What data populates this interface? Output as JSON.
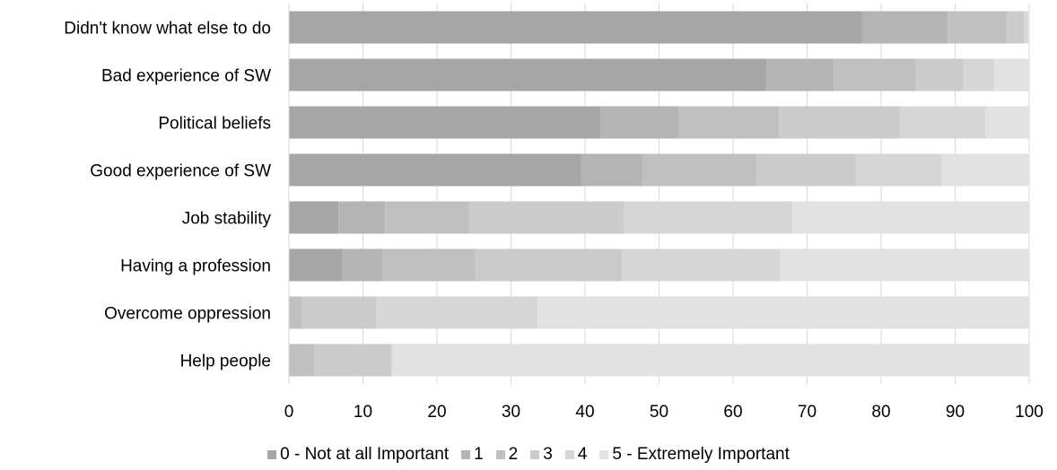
{
  "chart_data": {
    "type": "bar",
    "orientation": "horizontal",
    "stacked": true,
    "categories": [
      "Didn't know what else to do",
      "Bad experience of SW",
      "Political beliefs",
      "Good experience of SW",
      "Job stability",
      "Having a profession",
      "Overcome oppression",
      "Help people"
    ],
    "series": [
      {
        "name": "0 - Not at all Important",
        "color": "#a6a6a6",
        "values": [
          77.4,
          64.5,
          42.1,
          39.5,
          6.7,
          7.2,
          0.0,
          0.0
        ]
      },
      {
        "name": "1",
        "color": "#b4b4b4",
        "values": [
          11.6,
          9.1,
          10.6,
          8.2,
          6.3,
          5.4,
          0.0,
          0.0
        ]
      },
      {
        "name": "2",
        "color": "#c0c0c0",
        "values": [
          8.0,
          11.0,
          13.5,
          15.5,
          11.3,
          12.6,
          1.7,
          3.4
        ]
      },
      {
        "name": "3",
        "color": "#cbcbcb",
        "values": [
          2.3,
          6.5,
          16.3,
          13.4,
          21.0,
          19.8,
          10.1,
          10.5
        ]
      },
      {
        "name": "4",
        "color": "#d6d6d6",
        "values": [
          0.5,
          4.2,
          11.6,
          11.6,
          22.7,
          21.3,
          21.8,
          0.0
        ]
      },
      {
        "name": "5 - Extremely Important",
        "color": "#e2e2e2",
        "values": [
          0.2,
          4.7,
          5.9,
          11.8,
          32.0,
          33.7,
          66.4,
          86.1
        ]
      }
    ],
    "xlim": [
      0,
      100
    ],
    "xticks": [
      "0",
      "10",
      "20",
      "30",
      "40",
      "50",
      "60",
      "70",
      "80",
      "90",
      "100"
    ],
    "grid": true,
    "legend_position": "bottom",
    "title": "",
    "xlabel": "",
    "ylabel": ""
  }
}
